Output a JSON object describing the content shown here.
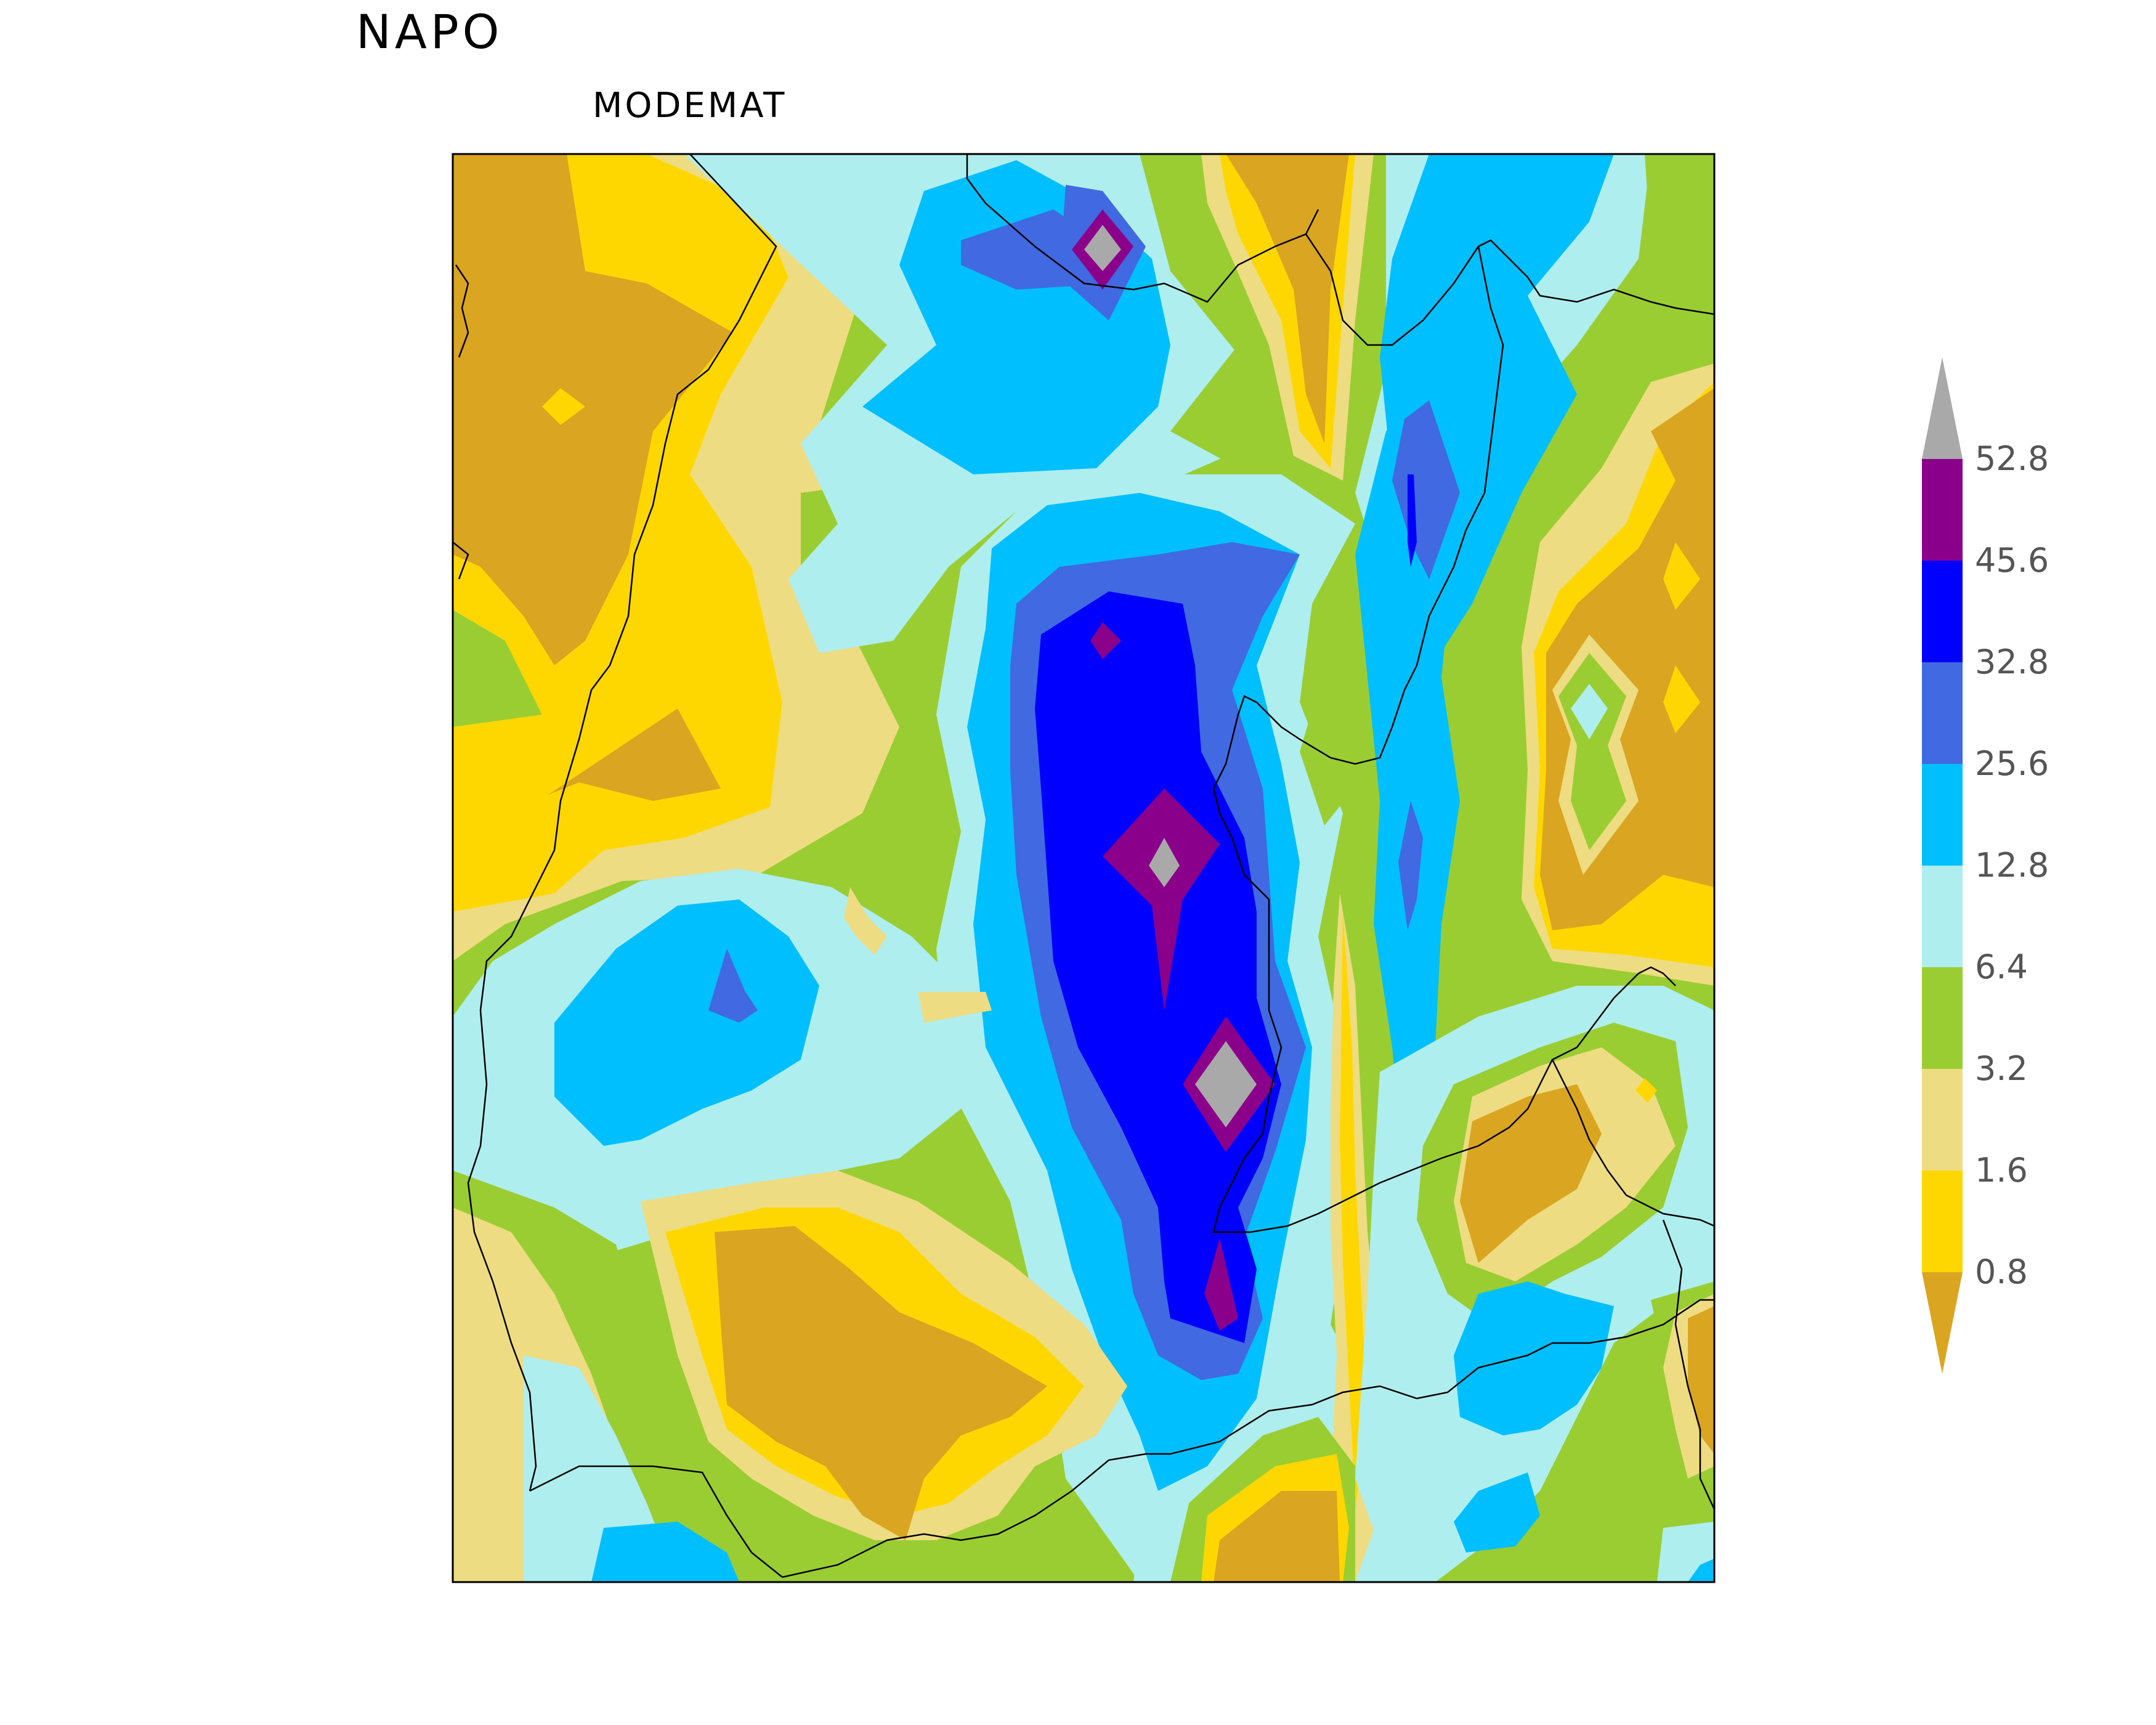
{
  "title": "NAPO",
  "subtitle": "MODEMAT",
  "legend": {
    "labels": [
      "52.8",
      "45.6",
      "32.8",
      "25.6",
      "12.8",
      "6.4",
      "3.2",
      "1.6",
      "0.8"
    ],
    "colors": [
      "#A9A9A9",
      "#8B008B",
      "#0000FF",
      "#4169E1",
      "#00BFFF",
      "#AFEEEE",
      "#9ACD32",
      "#EEDC82",
      "#FFD700",
      "#DAA520"
    ]
  },
  "palette": {
    "goldenrod": "#DAA520",
    "gold": "#FFD700",
    "khaki": "#EEDC82",
    "yellowgreen": "#9ACD32",
    "paleturquoise": "#AFEEEE",
    "deepskyblue": "#00BFFF",
    "royalblue": "#4169E1",
    "blue": "#0000FF",
    "purple": "#8B008B",
    "grey": "#A9A9A9"
  }
}
